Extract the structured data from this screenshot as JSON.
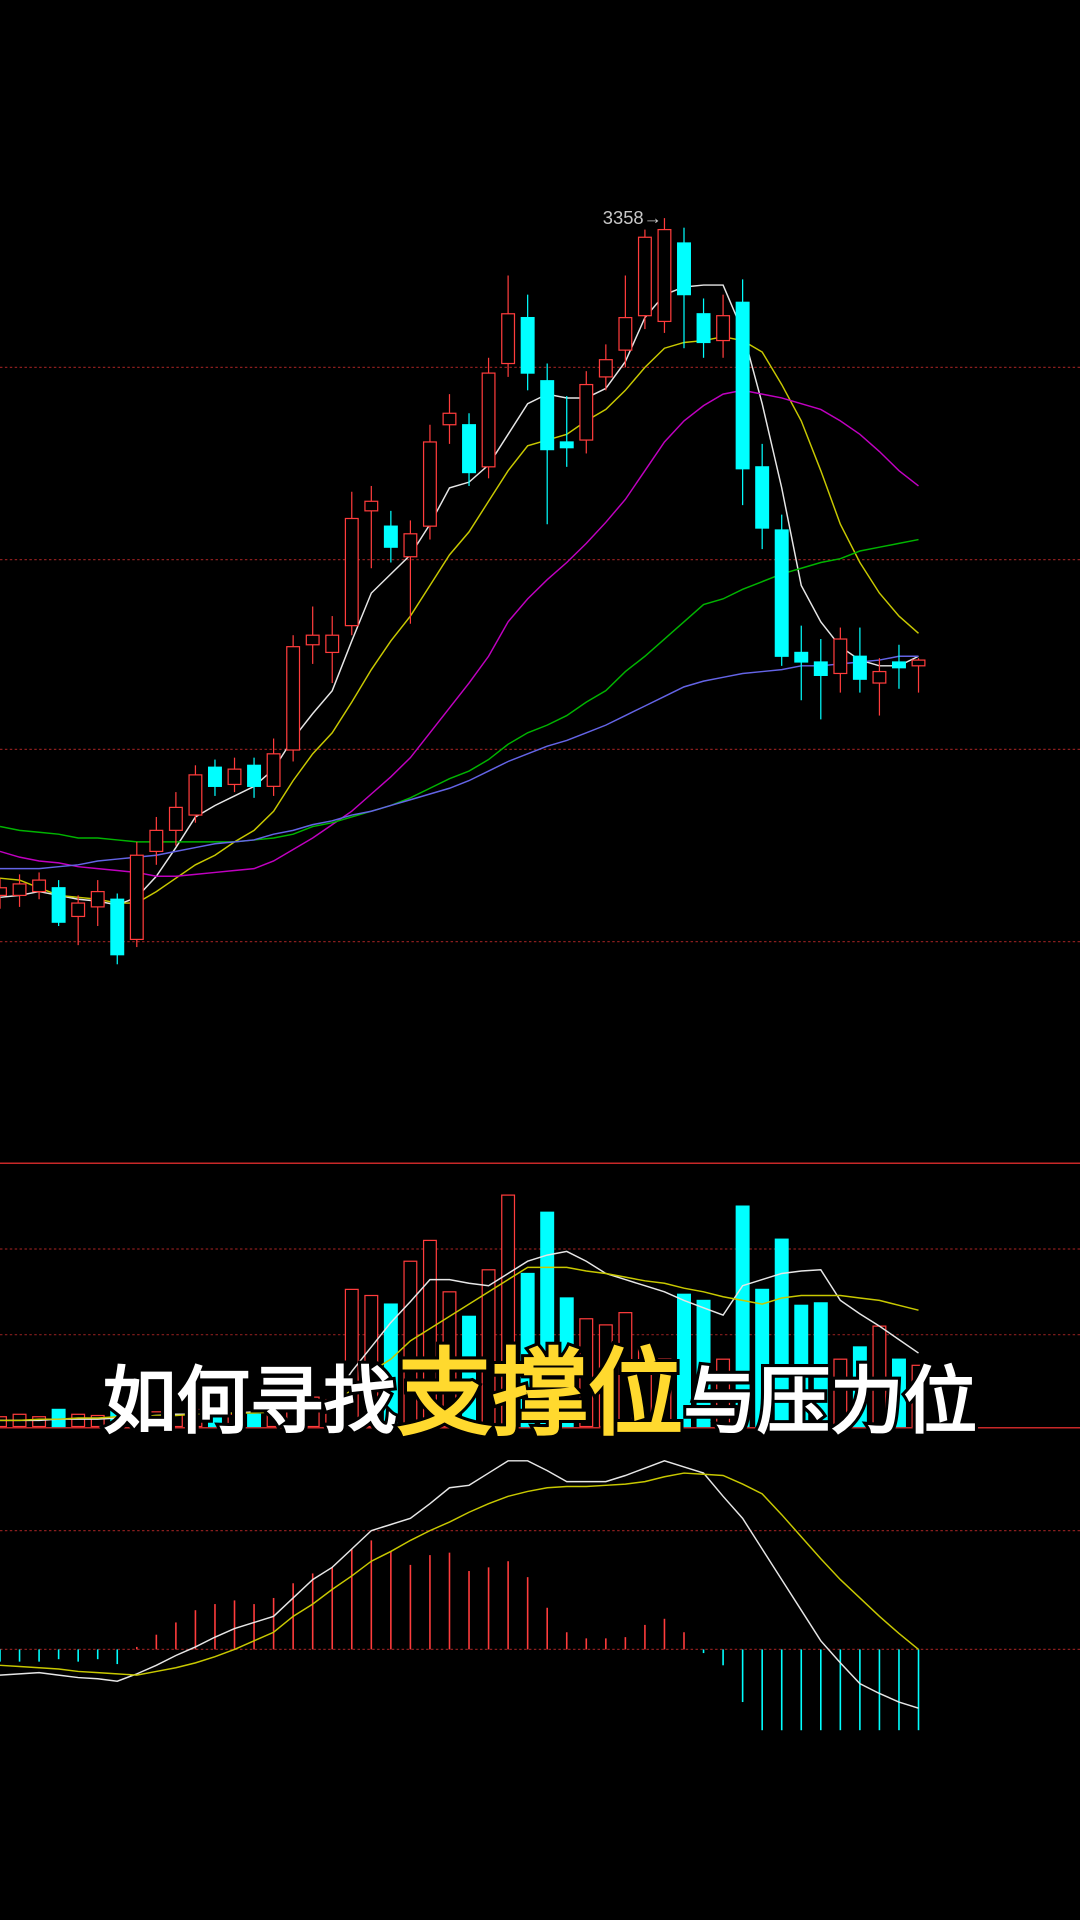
{
  "caption": {
    "parts": [
      "如何寻找",
      "支撑位",
      "与压力位"
    ],
    "colors": [
      "#ffffff",
      "#ffd92e",
      "#ffffff"
    ]
  },
  "chart_data": [
    {
      "type": "candlestick",
      "annotation": "3358→",
      "up_color": "#ff3c3c",
      "down_color": "#00ffff",
      "open": [
        3004,
        3004,
        3006,
        3008,
        2993,
        2998,
        3002,
        2981,
        3027,
        3038,
        3046,
        3071,
        3062,
        3072,
        3061,
        3080,
        3135,
        3131,
        3145,
        3205,
        3197,
        3181,
        3197,
        3250,
        3250,
        3228,
        3282,
        3306,
        3273,
        3241,
        3242,
        3275,
        3289,
        3307,
        3304,
        3345,
        3308,
        3294,
        3314,
        3228,
        3195,
        3131,
        3126,
        3120,
        3129,
        3115,
        3126,
        3124
      ],
      "close": [
        3008,
        3010,
        3012,
        2990,
        3000,
        3006,
        2973,
        3025,
        3038,
        3050,
        3067,
        3061,
        3070,
        3061,
        3078,
        3134,
        3140,
        3140,
        3201,
        3210,
        3186,
        3193,
        3241,
        3256,
        3225,
        3277,
        3308,
        3277,
        3237,
        3238,
        3271,
        3284,
        3306,
        3348,
        3352,
        3318,
        3293,
        3307,
        3227,
        3196,
        3129,
        3126,
        3119,
        3138,
        3117,
        3121,
        3123,
        3127
      ],
      "high": [
        3013,
        3015,
        3016,
        3012,
        3004,
        3012,
        3005,
        3032,
        3045,
        3058,
        3072,
        3075,
        3076,
        3076,
        3086,
        3140,
        3155,
        3150,
        3215,
        3218,
        3205,
        3200,
        3250,
        3266,
        3256,
        3285,
        3328,
        3318,
        3282,
        3265,
        3278,
        3292,
        3328,
        3352,
        3358,
        3353,
        3316,
        3318,
        3326,
        3240,
        3203,
        3145,
        3138,
        3144,
        3144,
        3128,
        3135,
        3128
      ],
      "low": [
        2997,
        2998,
        3002,
        2988,
        2978,
        2988,
        2968,
        2977,
        3020,
        3030,
        3042,
        3056,
        3058,
        3055,
        3056,
        3074,
        3125,
        3115,
        3140,
        3175,
        3178,
        3146,
        3190,
        3240,
        3218,
        3222,
        3275,
        3268,
        3198,
        3228,
        3235,
        3268,
        3280,
        3300,
        3298,
        3290,
        3285,
        3285,
        3208,
        3185,
        3124,
        3106,
        3096,
        3110,
        3110,
        3098,
        3112,
        3110
      ],
      "series": [
        {
          "color": "#e6e6e6",
          "values": [
            3003,
            3004,
            3006,
            3004,
            3002,
            3001,
            2999,
            3003,
            3014,
            3029,
            3045,
            3051,
            3056,
            3061,
            3070,
            3086,
            3099,
            3111,
            3137,
            3162,
            3172,
            3182,
            3198,
            3217,
            3220,
            3229,
            3245,
            3261,
            3266,
            3264,
            3264,
            3269,
            3283,
            3306,
            3318,
            3322,
            3323,
            3323,
            3299,
            3261,
            3217,
            3166,
            3147,
            3134,
            3127,
            3124,
            3124,
            3129
          ]
        },
        {
          "color": "#c8c800",
          "values": [
            3013,
            3012,
            3008,
            3004,
            3003,
            3002,
            3000,
            3000,
            3006,
            3013,
            3020,
            3025,
            3032,
            3038,
            3048,
            3064,
            3078,
            3089,
            3105,
            3122,
            3137,
            3150,
            3166,
            3182,
            3194,
            3210,
            3226,
            3239,
            3242,
            3245,
            3252,
            3258,
            3268,
            3280,
            3290,
            3293,
            3294,
            3296,
            3294,
            3288,
            3271,
            3252,
            3226,
            3198,
            3178,
            3162,
            3150,
            3141
          ]
        },
        {
          "color": "#c000c0",
          "values": [
            3027,
            3024,
            3022,
            3021,
            3019,
            3018,
            3017,
            3016,
            3014,
            3014,
            3015,
            3016,
            3017,
            3018,
            3022,
            3028,
            3034,
            3041,
            3048,
            3057,
            3066,
            3076,
            3089,
            3102,
            3115,
            3129,
            3147,
            3159,
            3169,
            3178,
            3188,
            3199,
            3211,
            3226,
            3241,
            3252,
            3260,
            3266,
            3268,
            3266,
            3264,
            3261,
            3258,
            3252,
            3245,
            3236,
            3226,
            3218
          ]
        },
        {
          "color": "#00b400",
          "values": [
            3040,
            3038,
            3037,
            3036,
            3034,
            3034,
            3033,
            3032,
            3032,
            3032,
            3032,
            3032,
            3032,
            3033,
            3034,
            3036,
            3040,
            3042,
            3045,
            3048,
            3051,
            3055,
            3060,
            3065,
            3069,
            3075,
            3083,
            3089,
            3093,
            3098,
            3105,
            3111,
            3121,
            3129,
            3138,
            3147,
            3156,
            3159,
            3164,
            3168,
            3172,
            3175,
            3178,
            3180,
            3184,
            3186,
            3188,
            3190
          ]
        },
        {
          "color": "#6464e6",
          "values": [
            3018,
            3018,
            3018,
            3019,
            3020,
            3022,
            3023,
            3024,
            3025,
            3027,
            3029,
            3031,
            3032,
            3033,
            3036,
            3038,
            3041,
            3043,
            3046,
            3048,
            3051,
            3054,
            3057,
            3060,
            3064,
            3069,
            3074,
            3078,
            3082,
            3085,
            3089,
            3093,
            3098,
            3103,
            3108,
            3113,
            3116,
            3118,
            3120,
            3121,
            3122,
            3124,
            3124,
            3125,
            3126,
            3127,
            3129,
            3129
          ]
        }
      ],
      "ylim": [
        2960,
        3376
      ]
    },
    {
      "type": "volume",
      "values": [
        8,
        10,
        8,
        14,
        10,
        9,
        16,
        18,
        12,
        10,
        14,
        9,
        10,
        10,
        14,
        40,
        24,
        22,
        112,
        107,
        100,
        135,
        152,
        110,
        90,
        128,
        189,
        125,
        175,
        105,
        88,
        83,
        93,
        65,
        55,
        108,
        103,
        55,
        180,
        112,
        153,
        99,
        101,
        55,
        65,
        82,
        55,
        50
      ],
      "series": [
        {
          "color": "#e6e6e6",
          "values": [
            5,
            5,
            5,
            6,
            6,
            6,
            7,
            8,
            9,
            10,
            10,
            11,
            11,
            12,
            12,
            15,
            18,
            22,
            45,
            65,
            85,
            102,
            120,
            120,
            117,
            115,
            125,
            135,
            140,
            143,
            135,
            125,
            120,
            115,
            110,
            103,
            97,
            91,
            115,
            120,
            125,
            127,
            128,
            103,
            92,
            82,
            71,
            60
          ]
        },
        {
          "color": "#c8c800",
          "values": [
            5,
            5,
            6,
            6,
            7,
            7,
            8,
            8,
            9,
            9,
            10,
            10,
            11,
            11,
            12,
            13,
            15,
            18,
            30,
            45,
            55,
            70,
            80,
            90,
            100,
            110,
            120,
            130,
            130,
            130,
            127,
            125,
            122,
            119,
            117,
            113,
            110,
            106,
            103,
            100,
            105,
            107,
            107,
            107,
            105,
            103,
            99,
            95
          ]
        }
      ],
      "ylim": [
        0,
        215
      ]
    },
    {
      "type": "macd",
      "values": [
        -5,
        -5,
        -5,
        -4,
        -5,
        -4,
        -6,
        1,
        6,
        11,
        16,
        18.5,
        20,
        18.5,
        21,
        27,
        31,
        33.5,
        41,
        44.5,
        40,
        34.5,
        38.5,
        39.5,
        32,
        33.5,
        36,
        29.5,
        17,
        7,
        4.5,
        4.5,
        5,
        10,
        12.5,
        7,
        -1.5,
        -6.5,
        -21.5,
        -33,
        -33,
        -33,
        -33,
        -33,
        -33,
        -33,
        -33,
        -33
      ],
      "series": [
        {
          "color": "#e6e6e6",
          "values": [
            -10.5,
            -10,
            -9.5,
            -10.5,
            -11.5,
            -12,
            -13,
            -10,
            -6.5,
            -2.5,
            1,
            5,
            8.5,
            11,
            13.5,
            21,
            28.5,
            33.5,
            41,
            48.5,
            51,
            53.5,
            59.5,
            66,
            67,
            72,
            77,
            77,
            73,
            68.5,
            68.5,
            68.5,
            71,
            74,
            77,
            74.5,
            72,
            62.5,
            53.5,
            41,
            28.5,
            16,
            3.5,
            -5.5,
            -14,
            -18,
            -21.5,
            -24
          ]
        },
        {
          "color": "#c8c800",
          "values": [
            -6.5,
            -7,
            -7.5,
            -8,
            -9,
            -9.5,
            -10,
            -10.5,
            -9,
            -7.5,
            -5.5,
            -3,
            0,
            3.5,
            7,
            13.5,
            18.5,
            24.5,
            30,
            36,
            40,
            44.5,
            48.5,
            52,
            56,
            59.5,
            62.5,
            64.5,
            66,
            66.5,
            66.5,
            67,
            67.5,
            68.5,
            70.5,
            72,
            71.5,
            71,
            67.5,
            63.5,
            55,
            46,
            37,
            28.5,
            21,
            13.5,
            6.5,
            0
          ]
        }
      ],
      "ylim": [
        -51.5,
        90.5
      ]
    }
  ]
}
